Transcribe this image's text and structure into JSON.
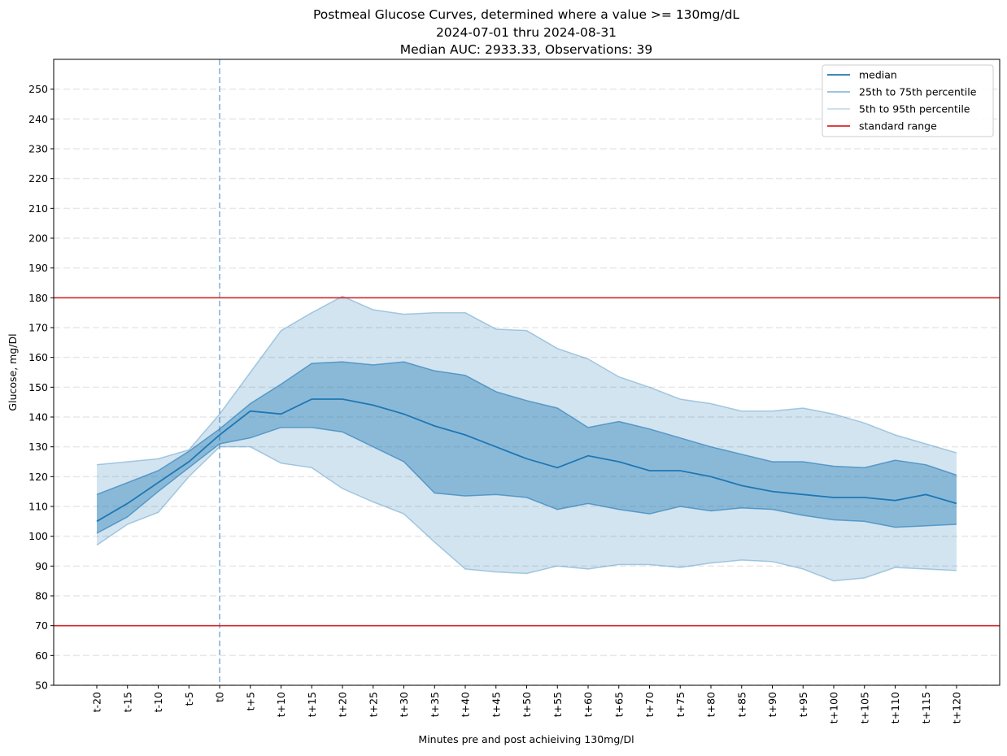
{
  "chart_data": {
    "type": "area",
    "title": "Postmeal Glucose Curves, determined where a value >= 130mg/dL",
    "subtitle": "2024-07-01 thru 2024-08-31",
    "subtitle2": "Median AUC: 2933.33, Observations: 39",
    "xlabel": "Minutes pre and post achieiving 130mg/Dl",
    "ylabel": "Glucose, mg/Dl",
    "ylim": [
      50,
      260
    ],
    "yticks": [
      50,
      60,
      70,
      80,
      90,
      100,
      110,
      120,
      130,
      140,
      150,
      160,
      170,
      180,
      190,
      200,
      210,
      220,
      230,
      240,
      250
    ],
    "categories": [
      "t-20",
      "t-15",
      "t-10",
      "t-5",
      "t0",
      "t+5",
      "t+10",
      "t+15",
      "t+20",
      "t+25",
      "t+30",
      "t+35",
      "t+40",
      "t+45",
      "t+50",
      "t+55",
      "t+60",
      "t+65",
      "t+70",
      "t+75",
      "t+80",
      "t+85",
      "t+90",
      "t+95",
      "t+100",
      "t+105",
      "t+110",
      "t+115",
      "t+120"
    ],
    "grid": "horizontal dashed",
    "legend_position": "top-right",
    "series": [
      {
        "name": "median",
        "values": [
          105,
          111,
          118,
          125,
          134,
          142,
          141,
          146,
          146,
          144,
          141,
          137,
          134,
          130,
          126,
          123,
          127,
          125,
          122,
          122,
          120,
          117,
          115,
          114,
          113,
          113,
          112,
          114,
          111
        ]
      },
      {
        "name": "25th to 75th percentile",
        "lower": [
          101,
          106.5,
          115,
          123,
          131,
          133,
          136.5,
          136.5,
          135,
          130,
          125,
          114.5,
          113.5,
          114,
          113,
          109,
          111,
          109,
          107.5,
          110,
          108.5,
          109.5,
          109,
          107,
          105.5,
          105,
          103,
          103.5,
          104
        ],
        "upper": [
          114,
          118,
          122,
          128.5,
          136,
          144.5,
          151,
          158,
          158.5,
          157.5,
          158.5,
          155.5,
          154,
          148.5,
          145.5,
          143,
          136.5,
          138.5,
          136,
          133,
          130,
          127.5,
          125,
          125,
          123.5,
          123,
          125.5,
          124,
          120.5
        ]
      },
      {
        "name": "5th to 95th percentile",
        "lower": [
          97,
          104,
          108,
          120,
          130,
          130,
          124.5,
          123,
          116,
          111.5,
          107.5,
          98,
          89,
          88,
          87.5,
          90,
          89,
          90.5,
          90.5,
          89.5,
          91,
          92,
          91.5,
          89,
          85,
          86,
          89.5,
          89,
          88.5
        ],
        "upper": [
          124,
          125,
          126,
          129,
          141,
          155,
          169,
          175,
          180.5,
          176,
          174.5,
          175,
          175,
          169.5,
          169,
          163,
          159.5,
          153.5,
          150,
          146,
          144.5,
          142,
          142,
          143,
          141,
          138,
          134,
          131,
          128
        ]
      }
    ],
    "reference_lines": [
      {
        "name": "standard range",
        "values": [
          70,
          180
        ],
        "color": "#d62728"
      }
    ],
    "vertical_marker": {
      "x": "t0",
      "style": "dashed"
    },
    "colors": {
      "median": "#1f77b4",
      "iqr_fill": "#1f77b4",
      "p5_95_fill": "#1f77b4",
      "standard_range": "#d62728"
    }
  }
}
